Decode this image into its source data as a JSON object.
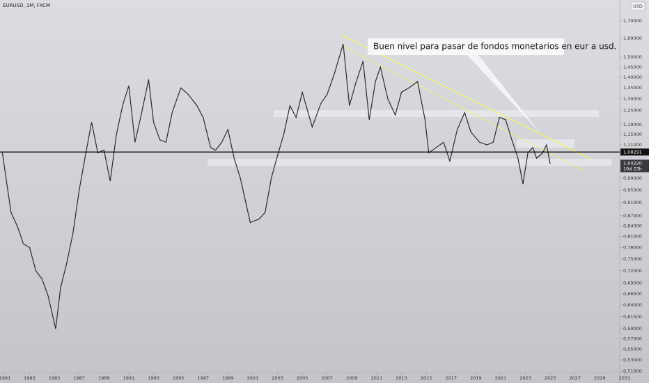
{
  "chart_data": {
    "type": "line",
    "title": "EURUSD, 1M, FXCM",
    "currency": "USD",
    "annotation": "Buen nivel para pasar de fondos monetarios en eur a usd.",
    "color": "#2a2a2a",
    "log_scale": true,
    "x": [
      1980.8,
      1981.5,
      1982,
      1982.5,
      1983,
      1983.5,
      1984,
      1984.5,
      1985.1,
      1985.5,
      1986,
      1986.5,
      1987,
      1987.5,
      1988,
      1988.5,
      1989,
      1989.5,
      1990,
      1990.5,
      1991,
      1991.5,
      1992,
      1992.6,
      1993,
      1993.5,
      1994,
      1994.5,
      1995.2,
      1995.8,
      1996.5,
      1997,
      1997.6,
      1998,
      1998.5,
      1999,
      1999.5,
      2000,
      2000.8,
      2001.5,
      2002,
      2002.5,
      2003,
      2003.5,
      2004,
      2004.5,
      2005,
      2005.8,
      2006.5,
      2007,
      2007.6,
      2008.3,
      2008.8,
      2009.3,
      2009.9,
      2010.4,
      2010.9,
      2011.3,
      2011.9,
      2012.5,
      2013,
      2013.6,
      2014.3,
      2014.9,
      2015.2,
      2015.8,
      2016.4,
      2016.9,
      2017.5,
      2018.1,
      2018.6,
      2019.3,
      2019.9,
      2020.4,
      2020.9,
      2021.4,
      2021.9,
      2022.4,
      2022.8,
      2023.2,
      2023.6,
      2023.9,
      2024.4,
      2024.7,
      2025.0
    ],
    "values": [
      1.08,
      0.88,
      0.84,
      0.79,
      0.78,
      0.72,
      0.7,
      0.66,
      0.59,
      0.68,
      0.74,
      0.82,
      0.95,
      1.07,
      1.2,
      1.08,
      1.09,
      0.98,
      1.15,
      1.27,
      1.36,
      1.12,
      1.23,
      1.39,
      1.2,
      1.13,
      1.12,
      1.24,
      1.35,
      1.32,
      1.27,
      1.22,
      1.1,
      1.09,
      1.12,
      1.17,
      1.06,
      0.99,
      0.85,
      0.86,
      0.88,
      0.99,
      1.07,
      1.15,
      1.27,
      1.22,
      1.33,
      1.18,
      1.28,
      1.32,
      1.42,
      1.57,
      1.27,
      1.37,
      1.48,
      1.21,
      1.38,
      1.45,
      1.3,
      1.23,
      1.33,
      1.35,
      1.38,
      1.21,
      1.08,
      1.1,
      1.12,
      1.05,
      1.17,
      1.24,
      1.16,
      1.12,
      1.11,
      1.12,
      1.22,
      1.21,
      1.13,
      1.06,
      0.97,
      1.08,
      1.1,
      1.06,
      1.08,
      1.11,
      1.04
    ],
    "xlim": [
      1980.61,
      2032.97
    ],
    "xticks": [
      1981,
      1983,
      1985,
      1987,
      1989,
      1991,
      1993,
      1995,
      1997,
      1999,
      2001,
      2003,
      2005,
      2007,
      2009,
      2011,
      2013,
      2015,
      2017,
      2019,
      2021,
      2023,
      2025,
      2027,
      2029,
      2031
    ],
    "ylim": [
      0.5076,
      1.826
    ],
    "yticks": [
      {
        "value": 1.7,
        "label": "1,70000"
      },
      {
        "value": 1.6,
        "label": "1,60000"
      },
      {
        "value": 1.5,
        "label": "1,50000"
      },
      {
        "value": 1.45,
        "label": "1,45000"
      },
      {
        "value": 1.4,
        "label": "1,40000"
      },
      {
        "value": 1.35,
        "label": "1,35000"
      },
      {
        "value": 1.3,
        "label": "1,30000"
      },
      {
        "value": 1.25,
        "label": "1,25000"
      },
      {
        "value": 1.19,
        "label": "1,19000"
      },
      {
        "value": 1.15,
        "label": "1,15000"
      },
      {
        "value": 1.11,
        "label": "1,11000"
      },
      {
        "value": 0.99,
        "label": "0,99000"
      },
      {
        "value": 0.95,
        "label": "0,95000"
      },
      {
        "value": 0.91,
        "label": "0,91000"
      },
      {
        "value": 0.87,
        "label": "0,87000"
      },
      {
        "value": 0.84,
        "label": "0,84000"
      },
      {
        "value": 0.81,
        "label": "0,81000"
      },
      {
        "value": 0.78,
        "label": "0,78000"
      },
      {
        "value": 0.75,
        "label": "0,75000"
      },
      {
        "value": 0.72,
        "label": "0,72000"
      },
      {
        "value": 0.69,
        "label": "0,69000"
      },
      {
        "value": 0.665,
        "label": "0,66500"
      },
      {
        "value": 0.64,
        "label": "0,64000"
      },
      {
        "value": 0.615,
        "label": "0,61500"
      },
      {
        "value": 0.59,
        "label": "0,59000"
      },
      {
        "value": 0.57,
        "label": "0,57000"
      },
      {
        "value": 0.55,
        "label": "0,55000"
      },
      {
        "value": 0.53,
        "label": "0,53000"
      },
      {
        "value": 0.51,
        "label": "0,51000"
      }
    ],
    "hline": {
      "value": 1.08291,
      "label": "1,08291"
    },
    "last_price": {
      "value": 1.0422,
      "label": "1,04220"
    },
    "countdown": "10d 23h"
  }
}
